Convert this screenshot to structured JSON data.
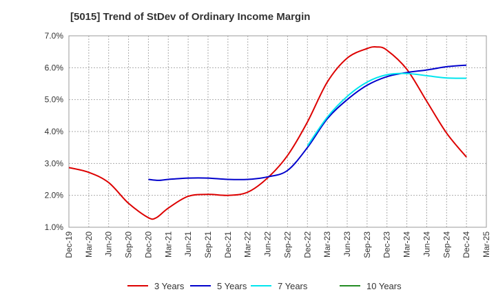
{
  "chart_data": {
    "type": "line",
    "title": "[5015]  Trend of StDev of Ordinary Income Margin",
    "xlabel": "",
    "ylabel": "",
    "ylim": [
      1.0,
      7.0
    ],
    "y_ticks": [
      "1.0%",
      "2.0%",
      "3.0%",
      "4.0%",
      "5.0%",
      "6.0%",
      "7.0%"
    ],
    "x_ticks": [
      "Dec-19",
      "Mar-20",
      "Jun-20",
      "Sep-20",
      "Dec-20",
      "Mar-21",
      "Jun-21",
      "Sep-21",
      "Dec-21",
      "Mar-22",
      "Jun-22",
      "Sep-22",
      "Dec-22",
      "Mar-23",
      "Jun-23",
      "Sep-23",
      "Dec-23",
      "Mar-24",
      "Jun-24",
      "Sep-24",
      "Dec-24",
      "Mar-25"
    ],
    "grid": true,
    "legend_position": "bottom",
    "series": [
      {
        "name": "3 Years",
        "color": "#dd0000",
        "points": [
          [
            0,
            2.87
          ],
          [
            1,
            2.72
          ],
          [
            2,
            2.4
          ],
          [
            3,
            1.75
          ],
          [
            4,
            1.3
          ],
          [
            4.4,
            1.3
          ],
          [
            5,
            1.6
          ],
          [
            6,
            1.97
          ],
          [
            7,
            2.03
          ],
          [
            8,
            2.0
          ],
          [
            9,
            2.1
          ],
          [
            10,
            2.55
          ],
          [
            11,
            3.25
          ],
          [
            12,
            4.3
          ],
          [
            13,
            5.55
          ],
          [
            14,
            6.3
          ],
          [
            15,
            6.6
          ],
          [
            15.5,
            6.65
          ],
          [
            16,
            6.55
          ],
          [
            17,
            5.95
          ],
          [
            18,
            4.95
          ],
          [
            19,
            3.95
          ],
          [
            20,
            3.2
          ]
        ]
      },
      {
        "name": "5 Years",
        "color": "#0000cc",
        "points": [
          [
            4,
            2.5
          ],
          [
            4.5,
            2.47
          ],
          [
            5,
            2.5
          ],
          [
            6,
            2.54
          ],
          [
            7,
            2.54
          ],
          [
            8,
            2.5
          ],
          [
            9,
            2.5
          ],
          [
            10,
            2.58
          ],
          [
            11,
            2.78
          ],
          [
            12,
            3.5
          ],
          [
            13,
            4.4
          ],
          [
            14,
            5.0
          ],
          [
            15,
            5.45
          ],
          [
            16,
            5.72
          ],
          [
            17,
            5.85
          ],
          [
            18,
            5.93
          ],
          [
            19,
            6.03
          ],
          [
            20,
            6.08
          ]
        ]
      },
      {
        "name": "7 Years",
        "color": "#00e5ee",
        "points": [
          [
            12,
            3.55
          ],
          [
            13,
            4.45
          ],
          [
            14,
            5.1
          ],
          [
            15,
            5.55
          ],
          [
            16,
            5.78
          ],
          [
            17,
            5.82
          ],
          [
            18,
            5.75
          ],
          [
            19,
            5.68
          ],
          [
            20,
            5.67
          ]
        ]
      },
      {
        "name": "10 Years",
        "color": "#228b22",
        "points": []
      }
    ]
  }
}
